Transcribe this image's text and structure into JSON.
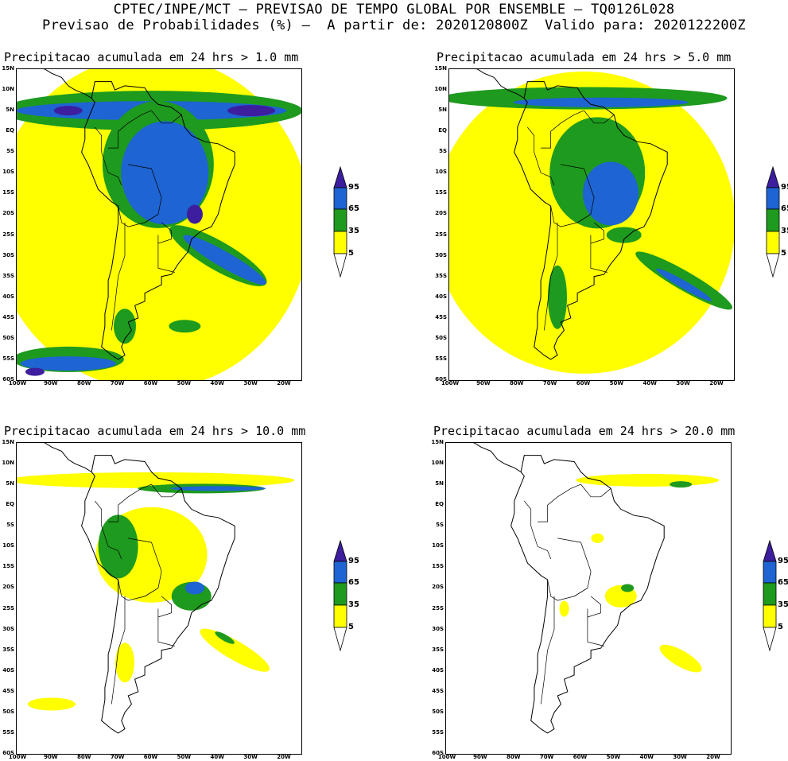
{
  "header": {
    "line1": "CPTEC/INPE/MCT — PREVISAO DE TEMPO GLOBAL POR ENSEMBLE — TQ0126L028",
    "line2": "Previsao de Probabilidades (%) —  A partir de: 2020120800Z  Valido para: 2020122200Z"
  },
  "panels": [
    {
      "title": "Precipitacao acumulada em 24 hrs > 1.0 mm"
    },
    {
      "title": "Precipitacao acumulada em 24 hrs > 5.0 mm"
    },
    {
      "title": "Precipitacao acumulada em 24 hrs > 10.0 mm"
    },
    {
      "title": "Precipitacao acumulada em 24 hrs > 20.0 mm"
    }
  ],
  "axes": {
    "lat_labels": [
      "15N",
      "10N",
      "5N",
      "EQ",
      "5S",
      "10S",
      "15S",
      "20S",
      "25S",
      "30S",
      "35S",
      "40S",
      "45S",
      "50S",
      "55S",
      "60S"
    ],
    "lon_labels": [
      "100W",
      "90W",
      "80W",
      "70W",
      "60W",
      "50W",
      "40W",
      "30W",
      "20W"
    ]
  },
  "legend": {
    "labels": [
      "95",
      "65",
      "35",
      "5"
    ],
    "colors": {
      "c95": "#3c1e9e",
      "c65": "#1e64d2",
      "c35": "#1e9a1e",
      "c5": "#ffff00",
      "below": "#ffffff"
    }
  }
}
